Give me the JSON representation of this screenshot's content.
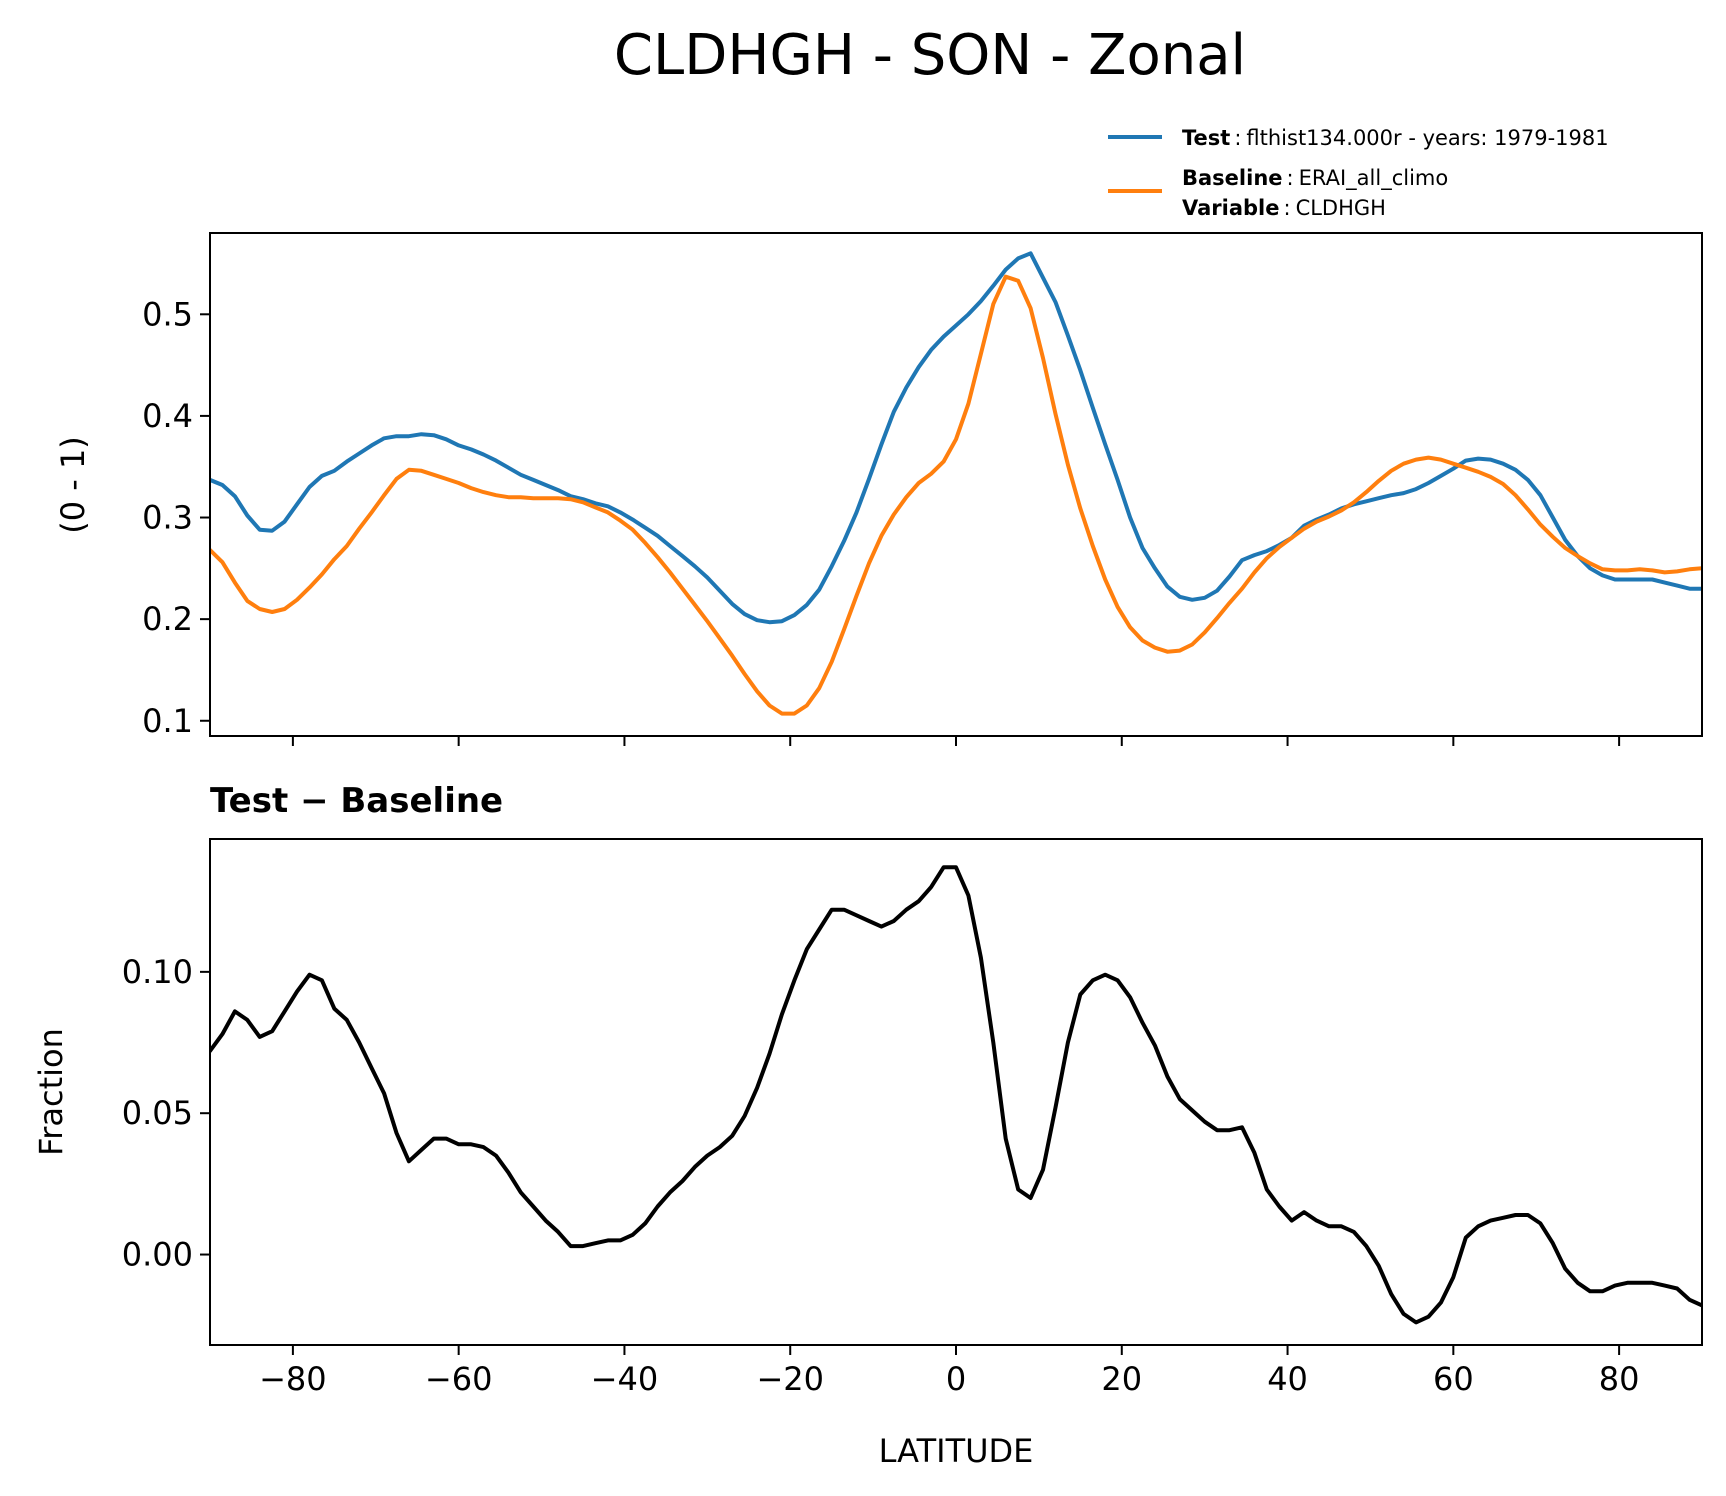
{
  "title": "CLDHGH - SON - Zonal",
  "legend": {
    "placement": "upper-right-outside",
    "test_key": "Test",
    "test_value": "flthist134.000r - years: 1979-1981",
    "baseline_key": "Baseline",
    "baseline_value": "ERAI_all_climo",
    "variable_key": "Variable",
    "variable_value": "CLDHGH"
  },
  "colors": {
    "test": "#1f77b4",
    "baseline": "#ff7f0e",
    "diff": "#000000"
  },
  "chart_data": [
    {
      "type": "line",
      "ylabel": "(0 - 1)",
      "xlim": [
        -90,
        90
      ],
      "ylim": [
        0.085,
        0.58
      ],
      "xticks": [
        -80,
        -60,
        -40,
        -20,
        0,
        20,
        40,
        60,
        80
      ],
      "show_xticklabels": false,
      "yticks": [
        0.1,
        0.2,
        0.3,
        0.4,
        0.5
      ],
      "ytick_labels": [
        "0.1",
        "0.2",
        "0.3",
        "0.4",
        "0.5"
      ],
      "grid": false,
      "series": [
        {
          "name": "Test",
          "x": [
            -90,
            -88.5,
            -87,
            -85.5,
            -84,
            -82.5,
            -81,
            -79.5,
            -78,
            -76.5,
            -75,
            -73.5,
            -72,
            -70.5,
            -69,
            -67.5,
            -66,
            -64.5,
            -63,
            -61.5,
            -60,
            -58.5,
            -57,
            -55.5,
            -54,
            -52.5,
            -51,
            -49.5,
            -48,
            -46.5,
            -45,
            -43.5,
            -42,
            -40.5,
            -39,
            -37.5,
            -36,
            -34.5,
            -33,
            -31.5,
            -30,
            -28.5,
            -27,
            -25.5,
            -24,
            -22.5,
            -21,
            -19.5,
            -18,
            -16.5,
            -15,
            -13.5,
            -12,
            -10.5,
            -9,
            -7.5,
            -6,
            -4.5,
            -3,
            -1.5,
            0,
            1.5,
            3,
            4.5,
            6,
            7.5,
            9,
            10.5,
            12,
            13.5,
            15,
            16.5,
            18,
            19.5,
            21,
            22.5,
            24,
            25.5,
            27,
            28.5,
            30,
            31.5,
            33,
            34.5,
            36,
            37.5,
            39,
            40.5,
            42,
            43.5,
            45,
            46.5,
            48,
            49.5,
            51,
            52.5,
            54,
            55.5,
            57,
            58.5,
            60,
            61.5,
            63,
            64.5,
            66,
            67.5,
            69,
            70.5,
            72,
            73.5,
            75,
            76.5,
            78,
            79.5,
            81,
            82.5,
            84,
            85.5,
            87,
            88.5,
            90
          ],
          "values": [
            0.337,
            0.332,
            0.321,
            0.302,
            0.288,
            0.287,
            0.296,
            0.313,
            0.33,
            0.341,
            0.346,
            0.355,
            0.363,
            0.371,
            0.378,
            0.38,
            0.38,
            0.382,
            0.381,
            0.377,
            0.371,
            0.367,
            0.362,
            0.356,
            0.349,
            0.342,
            0.337,
            0.332,
            0.327,
            0.321,
            0.318,
            0.314,
            0.311,
            0.305,
            0.298,
            0.29,
            0.282,
            0.272,
            0.262,
            0.252,
            0.241,
            0.228,
            0.215,
            0.205,
            0.199,
            0.197,
            0.198,
            0.204,
            0.214,
            0.229,
            0.252,
            0.277,
            0.305,
            0.338,
            0.372,
            0.404,
            0.428,
            0.448,
            0.465,
            0.478,
            0.489,
            0.5,
            0.513,
            0.528,
            0.544,
            0.555,
            0.56,
            0.536,
            0.512,
            0.479,
            0.445,
            0.408,
            0.372,
            0.337,
            0.3,
            0.27,
            0.25,
            0.232,
            0.222,
            0.219,
            0.221,
            0.228,
            0.242,
            0.258,
            0.263,
            0.267,
            0.273,
            0.28,
            0.292,
            0.298,
            0.303,
            0.309,
            0.313,
            0.316,
            0.319,
            0.322,
            0.324,
            0.328,
            0.334,
            0.341,
            0.348,
            0.356,
            0.358,
            0.357,
            0.353,
            0.347,
            0.337,
            0.322,
            0.3,
            0.278,
            0.262,
            0.25,
            0.243,
            0.239,
            0.239,
            0.239,
            0.239,
            0.236,
            0.233,
            0.23,
            0.23
          ]
        },
        {
          "name": "Baseline",
          "x": [
            -90,
            -88.5,
            -87,
            -85.5,
            -84,
            -82.5,
            -81,
            -79.5,
            -78,
            -76.5,
            -75,
            -73.5,
            -72,
            -70.5,
            -69,
            -67.5,
            -66,
            -64.5,
            -63,
            -61.5,
            -60,
            -58.5,
            -57,
            -55.5,
            -54,
            -52.5,
            -51,
            -49.5,
            -48,
            -46.5,
            -45,
            -43.5,
            -42,
            -40.5,
            -39,
            -37.5,
            -36,
            -34.5,
            -33,
            -31.5,
            -30,
            -28.5,
            -27,
            -25.5,
            -24,
            -22.5,
            -21,
            -19.5,
            -18,
            -16.5,
            -15,
            -13.5,
            -12,
            -10.5,
            -9,
            -7.5,
            -6,
            -4.5,
            -3,
            -1.5,
            0,
            1.5,
            3,
            4.5,
            6,
            7.5,
            9,
            10.5,
            12,
            13.5,
            15,
            16.5,
            18,
            19.5,
            21,
            22.5,
            24,
            25.5,
            27,
            28.5,
            30,
            31.5,
            33,
            34.5,
            36,
            37.5,
            39,
            40.5,
            42,
            43.5,
            45,
            46.5,
            48,
            49.5,
            51,
            52.5,
            54,
            55.5,
            57,
            58.5,
            60,
            61.5,
            63,
            64.5,
            66,
            67.5,
            69,
            70.5,
            72,
            73.5,
            75,
            76.5,
            78,
            79.5,
            81,
            82.5,
            84,
            85.5,
            87,
            88.5,
            90
          ],
          "values": [
            0.268,
            0.256,
            0.236,
            0.218,
            0.21,
            0.207,
            0.21,
            0.219,
            0.231,
            0.244,
            0.259,
            0.272,
            0.289,
            0.305,
            0.322,
            0.338,
            0.347,
            0.346,
            0.342,
            0.338,
            0.334,
            0.329,
            0.325,
            0.322,
            0.32,
            0.32,
            0.319,
            0.319,
            0.319,
            0.318,
            0.315,
            0.31,
            0.305,
            0.297,
            0.288,
            0.275,
            0.261,
            0.246,
            0.23,
            0.214,
            0.198,
            0.181,
            0.164,
            0.146,
            0.129,
            0.115,
            0.107,
            0.107,
            0.115,
            0.132,
            0.158,
            0.19,
            0.223,
            0.255,
            0.282,
            0.303,
            0.32,
            0.334,
            0.343,
            0.355,
            0.377,
            0.412,
            0.461,
            0.51,
            0.537,
            0.533,
            0.506,
            0.457,
            0.402,
            0.352,
            0.309,
            0.272,
            0.239,
            0.212,
            0.192,
            0.179,
            0.172,
            0.168,
            0.169,
            0.175,
            0.187,
            0.201,
            0.216,
            0.23,
            0.246,
            0.26,
            0.271,
            0.28,
            0.289,
            0.296,
            0.301,
            0.307,
            0.315,
            0.325,
            0.336,
            0.346,
            0.353,
            0.357,
            0.359,
            0.357,
            0.353,
            0.349,
            0.345,
            0.34,
            0.333,
            0.322,
            0.308,
            0.293,
            0.281,
            0.27,
            0.262,
            0.255,
            0.249,
            0.248,
            0.248,
            0.249,
            0.248,
            0.246,
            0.247,
            0.249,
            0.25
          ]
        }
      ]
    },
    {
      "type": "line",
      "title": "Test − Baseline",
      "xlabel": "LATITUDE",
      "ylabel": "Fraction",
      "xlim": [
        -90,
        90
      ],
      "ylim": [
        -0.032,
        0.147
      ],
      "xticks": [
        -80,
        -60,
        -40,
        -20,
        0,
        20,
        40,
        60,
        80
      ],
      "xtick_labels": [
        "−80",
        "−60",
        "−40",
        "−20",
        "0",
        "20",
        "40",
        "60",
        "80"
      ],
      "yticks": [
        0.0,
        0.05,
        0.1
      ],
      "ytick_labels": [
        "0.00",
        "0.05",
        "0.10"
      ],
      "grid": false,
      "series": [
        {
          "x": [
            -90,
            -88.5,
            -87,
            -85.5,
            -84,
            -82.5,
            -81,
            -79.5,
            -78,
            -76.5,
            -75,
            -73.5,
            -72,
            -70.5,
            -69,
            -67.5,
            -66,
            -64.5,
            -63,
            -61.5,
            -60,
            -58.5,
            -57,
            -55.5,
            -54,
            -52.5,
            -51,
            -49.5,
            -48,
            -46.5,
            -45,
            -43.5,
            -42,
            -40.5,
            -39,
            -37.5,
            -36,
            -34.5,
            -33,
            -31.5,
            -30,
            -28.5,
            -27,
            -25.5,
            -24,
            -22.5,
            -21,
            -19.5,
            -18,
            -16.5,
            -15,
            -13.5,
            -12,
            -10.5,
            -9,
            -7.5,
            -6,
            -4.5,
            -3,
            -1.5,
            0,
            1.5,
            3,
            4.5,
            6,
            7.5,
            9,
            10.5,
            12,
            13.5,
            15,
            16.5,
            18,
            19.5,
            21,
            22.5,
            24,
            25.5,
            27,
            28.5,
            30,
            31.5,
            33,
            34.5,
            36,
            37.5,
            39,
            40.5,
            42,
            43.5,
            45,
            46.5,
            48,
            49.5,
            51,
            52.5,
            54,
            55.5,
            57,
            58.5,
            60,
            61.5,
            63,
            64.5,
            66,
            67.5,
            69,
            70.5,
            72,
            73.5,
            75,
            76.5,
            78,
            79.5,
            81,
            82.5,
            84,
            85.5,
            87,
            88.5,
            90
          ],
          "values": [
            0.072,
            0.078,
            0.086,
            0.083,
            0.077,
            0.079,
            0.086,
            0.093,
            0.099,
            0.097,
            0.087,
            0.083,
            0.075,
            0.066,
            0.057,
            0.043,
            0.033,
            0.037,
            0.041,
            0.041,
            0.039,
            0.039,
            0.038,
            0.035,
            0.029,
            0.022,
            0.017,
            0.012,
            0.008,
            0.003,
            0.003,
            0.004,
            0.005,
            0.005,
            0.007,
            0.011,
            0.017,
            0.022,
            0.026,
            0.031,
            0.035,
            0.038,
            0.042,
            0.049,
            0.059,
            0.071,
            0.085,
            0.097,
            0.108,
            0.115,
            0.122,
            0.122,
            0.12,
            0.118,
            0.116,
            0.118,
            0.122,
            0.125,
            0.13,
            0.137,
            0.137,
            0.127,
            0.105,
            0.075,
            0.041,
            0.023,
            0.02,
            0.03,
            0.052,
            0.075,
            0.092,
            0.097,
            0.099,
            0.097,
            0.091,
            0.082,
            0.074,
            0.063,
            0.055,
            0.051,
            0.047,
            0.044,
            0.044,
            0.045,
            0.036,
            0.023,
            0.017,
            0.012,
            0.015,
            0.012,
            0.01,
            0.01,
            0.008,
            0.003,
            -0.004,
            -0.014,
            -0.021,
            -0.024,
            -0.022,
            -0.017,
            -0.008,
            0.006,
            0.01,
            0.012,
            0.013,
            0.014,
            0.014,
            0.011,
            0.004,
            -0.005,
            -0.01,
            -0.013,
            -0.013,
            -0.011,
            -0.01,
            -0.01,
            -0.01,
            -0.011,
            -0.012,
            -0.016,
            -0.018
          ]
        }
      ]
    }
  ]
}
